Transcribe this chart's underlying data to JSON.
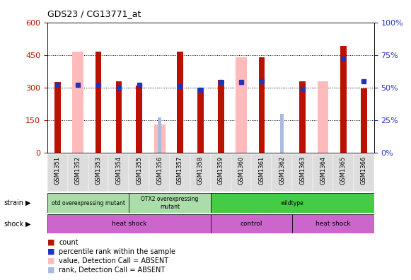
{
  "title": "GDS23 / CG13771_at",
  "samples": [
    "GSM1351",
    "GSM1352",
    "GSM1353",
    "GSM1354",
    "GSM1355",
    "GSM1356",
    "GSM1357",
    "GSM1358",
    "GSM1359",
    "GSM1360",
    "GSM1361",
    "GSM1362",
    "GSM1363",
    "GSM1364",
    "GSM1365",
    "GSM1366"
  ],
  "count_present": [
    325,
    null,
    465,
    330,
    310,
    null,
    465,
    300,
    335,
    null,
    440,
    null,
    330,
    null,
    490,
    295
  ],
  "count_absent": [
    null,
    465,
    null,
    null,
    null,
    130,
    null,
    null,
    null,
    440,
    null,
    null,
    null,
    330,
    null,
    null
  ],
  "rank_present": [
    52,
    52,
    52,
    50,
    52,
    null,
    51,
    48,
    54,
    54,
    55,
    null,
    49,
    null,
    72,
    55
  ],
  "rank_absent": [
    null,
    null,
    null,
    null,
    null,
    27,
    null,
    null,
    null,
    null,
    null,
    30,
    null,
    null,
    null,
    null
  ],
  "ylim_left": [
    0,
    600
  ],
  "ylim_right": [
    0,
    100
  ],
  "yticks_left": [
    0,
    150,
    300,
    450,
    600
  ],
  "yticks_right": [
    0,
    25,
    50,
    75,
    100
  ],
  "colors": {
    "count_red": "#BB1100",
    "rank_blue": "#2233BB",
    "absent_pink": "#FFBBBB",
    "absent_rank_lightblue": "#AABBDD",
    "strain_light_green": "#AADDAA",
    "strain_dark_green": "#44CC44",
    "shock_magenta": "#CC66CC",
    "tick_bg": "#DDDDDD"
  },
  "strain_groups": [
    {
      "label": "otd overexpressing mutant",
      "start": 0,
      "end": 4,
      "color_key": "strain_light_green"
    },
    {
      "label": "OTX2 overexpressing\nmutant",
      "start": 4,
      "end": 8,
      "color_key": "strain_light_green"
    },
    {
      "label": "wildtype",
      "start": 8,
      "end": 16,
      "color_key": "strain_dark_green"
    }
  ],
  "shock_groups": [
    {
      "label": "heat shock",
      "start": 0,
      "end": 8
    },
    {
      "label": "control",
      "start": 8,
      "end": 12
    },
    {
      "label": "heat shock",
      "start": 12,
      "end": 16
    }
  ],
  "legend": [
    {
      "color_key": "count_red",
      "label": "count"
    },
    {
      "color_key": "rank_blue",
      "label": "percentile rank within the sample"
    },
    {
      "color_key": "absent_pink",
      "label": "value, Detection Call = ABSENT"
    },
    {
      "color_key": "absent_rank_lightblue",
      "label": "rank, Detection Call = ABSENT"
    }
  ]
}
